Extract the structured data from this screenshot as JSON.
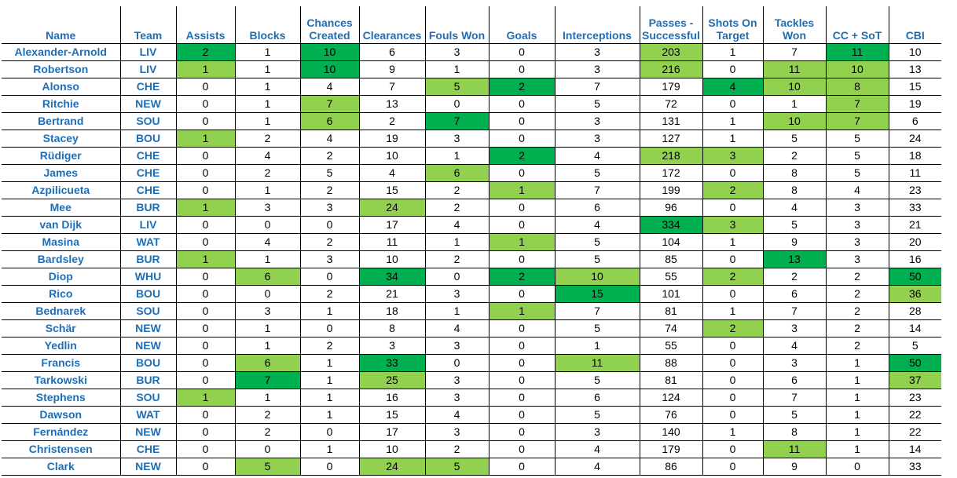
{
  "colors": {
    "header_text": "#1f6eb5",
    "light_green": "#92d050",
    "dark_green": "#00b050"
  },
  "headers": [
    "Name",
    "Team",
    "Assists",
    "Blocks",
    "Chances Created",
    "Clearances",
    "Fouls Won",
    "Goals",
    "Interceptions",
    "Passes - Successful",
    "Shots On Target",
    "Tackles Won",
    "CC + SoT",
    "CBI"
  ],
  "rows": [
    {
      "cells": [
        "Alexander-Arnold",
        "LIV",
        "2",
        "1",
        "10",
        "6",
        "3",
        "0",
        "3",
        "203",
        "1",
        "7",
        "11",
        "10"
      ],
      "hl": [
        "",
        "",
        "d",
        "",
        "d",
        "",
        "",
        "",
        "",
        "l",
        "",
        "",
        "d",
        ""
      ]
    },
    {
      "cells": [
        "Robertson",
        "LIV",
        "1",
        "1",
        "10",
        "9",
        "1",
        "0",
        "3",
        "216",
        "0",
        "11",
        "10",
        "13"
      ],
      "hl": [
        "",
        "",
        "l",
        "",
        "d",
        "",
        "",
        "",
        "",
        "l",
        "",
        "l",
        "l",
        ""
      ]
    },
    {
      "cells": [
        "Alonso",
        "CHE",
        "0",
        "1",
        "4",
        "7",
        "5",
        "2",
        "7",
        "179",
        "4",
        "10",
        "8",
        "15"
      ],
      "hl": [
        "",
        "",
        "",
        "",
        "",
        "",
        "l",
        "d",
        "",
        "",
        "d",
        "l",
        "l",
        ""
      ]
    },
    {
      "cells": [
        "Ritchie",
        "NEW",
        "0",
        "1",
        "7",
        "13",
        "0",
        "0",
        "5",
        "72",
        "0",
        "1",
        "7",
        "19"
      ],
      "hl": [
        "",
        "",
        "",
        "",
        "l",
        "",
        "",
        "",
        "",
        "",
        "",
        "",
        "l",
        ""
      ]
    },
    {
      "cells": [
        "Bertrand",
        "SOU",
        "0",
        "1",
        "6",
        "2",
        "7",
        "0",
        "3",
        "131",
        "1",
        "10",
        "7",
        "6"
      ],
      "hl": [
        "",
        "",
        "",
        "",
        "l",
        "",
        "d",
        "",
        "",
        "",
        "",
        "l",
        "l",
        ""
      ]
    },
    {
      "cells": [
        "Stacey",
        "BOU",
        "1",
        "2",
        "4",
        "19",
        "3",
        "0",
        "3",
        "127",
        "1",
        "5",
        "5",
        "24"
      ],
      "hl": [
        "",
        "",
        "l",
        "",
        "",
        "",
        "",
        "",
        "",
        "",
        "",
        "",
        "",
        ""
      ]
    },
    {
      "cells": [
        "Rüdiger",
        "CHE",
        "0",
        "4",
        "2",
        "10",
        "1",
        "2",
        "4",
        "218",
        "3",
        "2",
        "5",
        "18"
      ],
      "hl": [
        "",
        "",
        "",
        "",
        "",
        "",
        "",
        "d",
        "",
        "l",
        "l",
        "",
        "",
        ""
      ]
    },
    {
      "cells": [
        "James",
        "CHE",
        "0",
        "2",
        "5",
        "4",
        "6",
        "0",
        "5",
        "172",
        "0",
        "8",
        "5",
        "11"
      ],
      "hl": [
        "",
        "",
        "",
        "",
        "",
        "",
        "l",
        "",
        "",
        "",
        "",
        "",
        "",
        ""
      ]
    },
    {
      "cells": [
        "Azpilicueta",
        "CHE",
        "0",
        "1",
        "2",
        "15",
        "2",
        "1",
        "7",
        "199",
        "2",
        "8",
        "4",
        "23"
      ],
      "hl": [
        "",
        "",
        "",
        "",
        "",
        "",
        "",
        "l",
        "",
        "",
        "l",
        "",
        "",
        ""
      ]
    },
    {
      "cells": [
        "Mee",
        "BUR",
        "1",
        "3",
        "3",
        "24",
        "2",
        "0",
        "6",
        "96",
        "0",
        "4",
        "3",
        "33"
      ],
      "hl": [
        "",
        "",
        "l",
        "",
        "",
        "l",
        "",
        "",
        "",
        "",
        "",
        "",
        "",
        ""
      ]
    },
    {
      "cells": [
        "van Dijk",
        "LIV",
        "0",
        "0",
        "0",
        "17",
        "4",
        "0",
        "4",
        "334",
        "3",
        "5",
        "3",
        "21"
      ],
      "hl": [
        "",
        "",
        "",
        "",
        "",
        "",
        "",
        "",
        "",
        "d",
        "l",
        "",
        "",
        ""
      ]
    },
    {
      "cells": [
        "Masina",
        "WAT",
        "0",
        "4",
        "2",
        "11",
        "1",
        "1",
        "5",
        "104",
        "1",
        "9",
        "3",
        "20"
      ],
      "hl": [
        "",
        "",
        "",
        "",
        "",
        "",
        "",
        "l",
        "",
        "",
        "",
        "",
        "",
        ""
      ]
    },
    {
      "cells": [
        "Bardsley",
        "BUR",
        "1",
        "1",
        "3",
        "10",
        "2",
        "0",
        "5",
        "85",
        "0",
        "13",
        "3",
        "16"
      ],
      "hl": [
        "",
        "",
        "l",
        "",
        "",
        "",
        "",
        "",
        "",
        "",
        "",
        "d",
        "",
        ""
      ]
    },
    {
      "cells": [
        "Diop",
        "WHU",
        "0",
        "6",
        "0",
        "34",
        "0",
        "2",
        "10",
        "55",
        "2",
        "2",
        "2",
        "50"
      ],
      "hl": [
        "",
        "",
        "",
        "l",
        "",
        "d",
        "",
        "d",
        "l",
        "",
        "l",
        "",
        "",
        "d"
      ]
    },
    {
      "cells": [
        "Rico",
        "BOU",
        "0",
        "0",
        "2",
        "21",
        "3",
        "0",
        "15",
        "101",
        "0",
        "6",
        "2",
        "36"
      ],
      "hl": [
        "",
        "",
        "",
        "",
        "",
        "",
        "",
        "",
        "d",
        "",
        "",
        "",
        "",
        "l"
      ]
    },
    {
      "cells": [
        "Bednarek",
        "SOU",
        "0",
        "3",
        "1",
        "18",
        "1",
        "1",
        "7",
        "81",
        "1",
        "7",
        "2",
        "28"
      ],
      "hl": [
        "",
        "",
        "",
        "",
        "",
        "",
        "",
        "l",
        "",
        "",
        "",
        "",
        "",
        ""
      ]
    },
    {
      "cells": [
        "Schär",
        "NEW",
        "0",
        "1",
        "0",
        "8",
        "4",
        "0",
        "5",
        "74",
        "2",
        "3",
        "2",
        "14"
      ],
      "hl": [
        "",
        "",
        "",
        "",
        "",
        "",
        "",
        "",
        "",
        "",
        "l",
        "",
        "",
        ""
      ]
    },
    {
      "cells": [
        "Yedlin",
        "NEW",
        "0",
        "1",
        "2",
        "3",
        "3",
        "0",
        "1",
        "55",
        "0",
        "4",
        "2",
        "5"
      ],
      "hl": [
        "",
        "",
        "",
        "",
        "",
        "",
        "",
        "",
        "",
        "",
        "",
        "",
        "",
        ""
      ]
    },
    {
      "cells": [
        "Francis",
        "BOU",
        "0",
        "6",
        "1",
        "33",
        "0",
        "0",
        "11",
        "88",
        "0",
        "3",
        "1",
        "50"
      ],
      "hl": [
        "",
        "",
        "",
        "l",
        "",
        "d",
        "",
        "",
        "l",
        "",
        "",
        "",
        "",
        "d"
      ]
    },
    {
      "cells": [
        "Tarkowski",
        "BUR",
        "0",
        "7",
        "1",
        "25",
        "3",
        "0",
        "5",
        "81",
        "0",
        "6",
        "1",
        "37"
      ],
      "hl": [
        "",
        "",
        "",
        "d",
        "",
        "l",
        "",
        "",
        "",
        "",
        "",
        "",
        "",
        "l"
      ]
    },
    {
      "cells": [
        "Stephens",
        "SOU",
        "1",
        "1",
        "1",
        "16",
        "3",
        "0",
        "6",
        "124",
        "0",
        "7",
        "1",
        "23"
      ],
      "hl": [
        "",
        "",
        "l",
        "",
        "",
        "",
        "",
        "",
        "",
        "",
        "",
        "",
        "",
        ""
      ]
    },
    {
      "cells": [
        "Dawson",
        "WAT",
        "0",
        "2",
        "1",
        "15",
        "4",
        "0",
        "5",
        "76",
        "0",
        "5",
        "1",
        "22"
      ],
      "hl": [
        "",
        "",
        "",
        "",
        "",
        "",
        "",
        "",
        "",
        "",
        "",
        "",
        "",
        ""
      ]
    },
    {
      "cells": [
        "Fernández",
        "NEW",
        "0",
        "2",
        "0",
        "17",
        "3",
        "0",
        "3",
        "140",
        "1",
        "8",
        "1",
        "22"
      ],
      "hl": [
        "",
        "",
        "",
        "",
        "",
        "",
        "",
        "",
        "",
        "",
        "",
        "",
        "",
        ""
      ]
    },
    {
      "cells": [
        "Christensen",
        "CHE",
        "0",
        "0",
        "1",
        "10",
        "2",
        "0",
        "4",
        "179",
        "0",
        "11",
        "1",
        "14"
      ],
      "hl": [
        "",
        "",
        "",
        "",
        "",
        "",
        "",
        "",
        "",
        "",
        "",
        "l",
        "",
        ""
      ]
    },
    {
      "cells": [
        "Clark",
        "NEW",
        "0",
        "5",
        "0",
        "24",
        "5",
        "0",
        "4",
        "86",
        "0",
        "9",
        "0",
        "33"
      ],
      "hl": [
        "",
        "",
        "",
        "l",
        "",
        "l",
        "l",
        "",
        "",
        "",
        "",
        "",
        "",
        ""
      ]
    }
  ]
}
